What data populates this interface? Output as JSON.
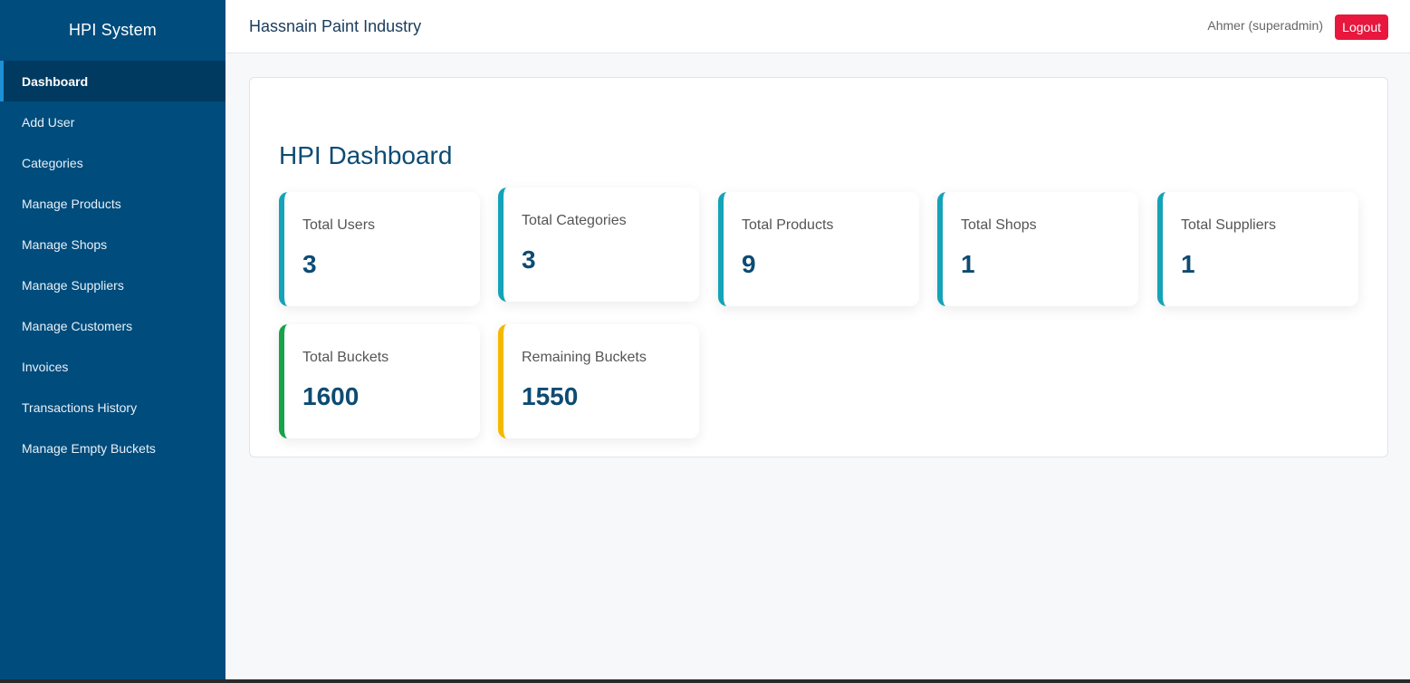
{
  "sidebar": {
    "brand": "HPI System",
    "items": [
      {
        "label": "Dashboard",
        "active": true
      },
      {
        "label": "Add User"
      },
      {
        "label": "Categories"
      },
      {
        "label": "Manage Products"
      },
      {
        "label": "Manage Shops"
      },
      {
        "label": "Manage Suppliers"
      },
      {
        "label": "Manage Customers"
      },
      {
        "label": "Invoices"
      },
      {
        "label": "Transactions History"
      },
      {
        "label": "Manage Empty Buckets"
      }
    ]
  },
  "header": {
    "title": "Hassnain Paint Industry",
    "user": "Ahmer (superadmin)",
    "logout_label": "Logout"
  },
  "main": {
    "title": "HPI Dashboard",
    "cards": [
      {
        "label": "Total Users",
        "value": "3",
        "accent": "#14a3b8"
      },
      {
        "label": "Total Categories",
        "value": "3",
        "accent": "#14a3b8"
      },
      {
        "label": "Total Products",
        "value": "9",
        "accent": "#14a3b8"
      },
      {
        "label": "Total Shops",
        "value": "1",
        "accent": "#14a3b8"
      },
      {
        "label": "Total Suppliers",
        "value": "1",
        "accent": "#14a3b8"
      },
      {
        "label": "Total Buckets",
        "value": "1600",
        "accent": "#16a34a"
      },
      {
        "label": "Remaining Buckets",
        "value": "1550",
        "accent": "#f5b800"
      }
    ]
  },
  "colors": {
    "sidebar_bg": "#004c7d",
    "sidebar_active_bg": "#003a60",
    "logout_bg": "#e8173e",
    "value_text": "#0d4b73"
  }
}
